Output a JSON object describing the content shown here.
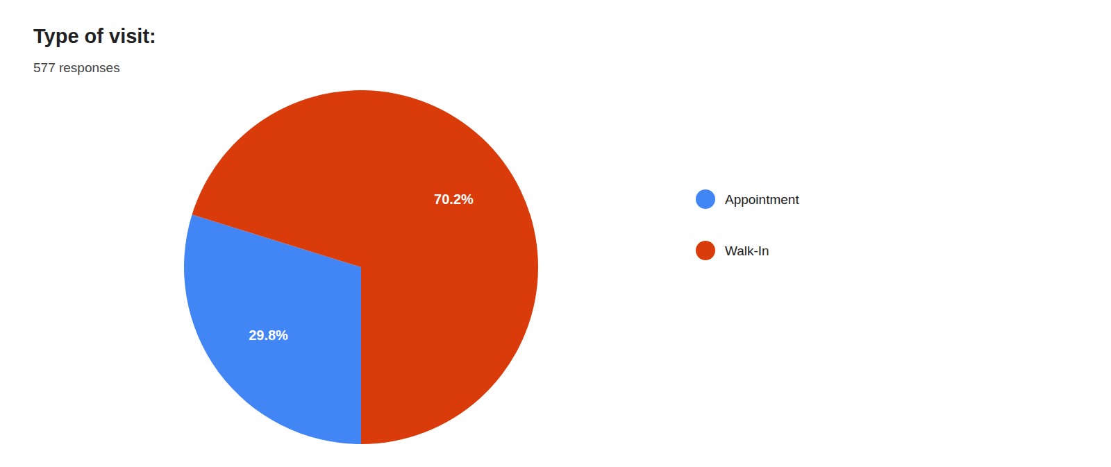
{
  "chart_data": {
    "type": "pie",
    "title": "Type of visit:",
    "subtitle": "577 responses",
    "categories": [
      "Appointment",
      "Walk-In"
    ],
    "values": [
      29.8,
      70.2
    ],
    "value_labels": [
      "29.8%",
      "70.2%"
    ],
    "colors": [
      "#4285F4",
      "#D93B0A"
    ],
    "data_labels": true,
    "legend": "right"
  }
}
